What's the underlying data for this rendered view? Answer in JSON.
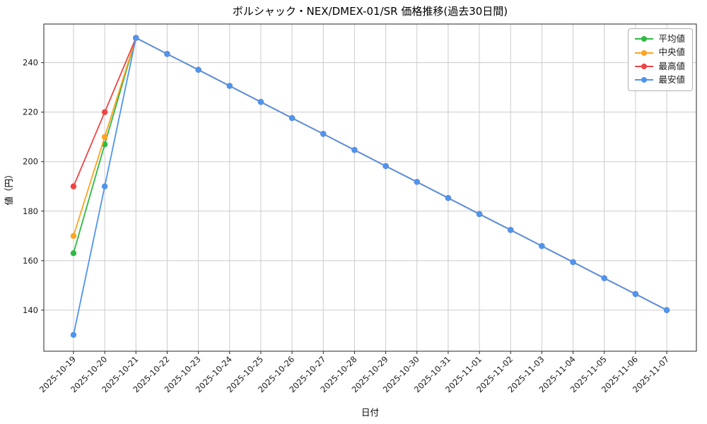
{
  "chart_data": {
    "type": "line",
    "title": "ボルシャック・NEX/DMEX-01/SR 価格推移(過去30日間)",
    "xlabel": "日付",
    "ylabel": "値（円）",
    "x": [
      "2025-10-19",
      "2025-10-20",
      "2025-10-21",
      "2025-10-22",
      "2025-10-23",
      "2025-10-24",
      "2025-10-25",
      "2025-10-26",
      "2025-10-27",
      "2025-10-28",
      "2025-10-29",
      "2025-10-30",
      "2025-10-31",
      "2025-11-01",
      "2025-11-02",
      "2025-11-03",
      "2025-11-04",
      "2025-11-05",
      "2025-11-06",
      "2025-11-07"
    ],
    "y_ticks": [
      140,
      160,
      180,
      200,
      220,
      240
    ],
    "ylim": [
      123.4,
      255.6
    ],
    "grid": true,
    "legend_position": "upper right",
    "series": [
      {
        "key": "mean",
        "name": "平均値",
        "color": "#2eb944",
        "values": [
          163,
          207,
          250,
          243.5,
          237.1,
          230.6,
          224.1,
          217.6,
          211.2,
          204.7,
          198.2,
          191.8,
          185.3,
          178.8,
          172.4,
          165.9,
          159.4,
          152.9,
          146.5,
          140
        ]
      },
      {
        "key": "median",
        "name": "中央値",
        "color": "#ffa321",
        "values": [
          170,
          210,
          250,
          243.5,
          237.1,
          230.6,
          224.1,
          217.6,
          211.2,
          204.7,
          198.2,
          191.8,
          185.3,
          178.8,
          172.4,
          165.9,
          159.4,
          152.9,
          146.5,
          140
        ]
      },
      {
        "key": "max",
        "name": "最高値",
        "color": "#ef4444",
        "values": [
          190,
          220,
          250,
          243.5,
          237.1,
          230.6,
          224.1,
          217.6,
          211.2,
          204.7,
          198.2,
          191.8,
          185.3,
          178.8,
          172.4,
          165.9,
          159.4,
          152.9,
          146.5,
          140
        ]
      },
      {
        "key": "min",
        "name": "最安値",
        "color": "#4f94ed",
        "values": [
          130,
          190,
          250,
          243.5,
          237.1,
          230.6,
          224.1,
          217.6,
          211.2,
          204.7,
          198.2,
          191.8,
          185.3,
          178.8,
          172.4,
          165.9,
          159.4,
          152.9,
          146.5,
          140
        ]
      }
    ]
  }
}
